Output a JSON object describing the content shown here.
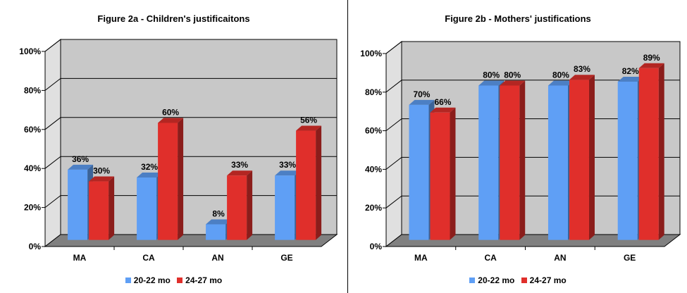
{
  "colors": {
    "series_1": "#5f9ff5",
    "series_2": "#e02f2b",
    "wall": "#c8c8c8",
    "floor": "#808080"
  },
  "chart_data": [
    {
      "type": "bar",
      "title": "Figure 2a - Children's justificaitons",
      "categories": [
        "MA",
        "CA",
        "AN",
        "GE"
      ],
      "series": [
        {
          "name": "20-22 mo",
          "values": [
            36,
            32,
            8,
            33
          ],
          "labels": [
            "36%",
            "32%",
            "8%",
            "33%"
          ]
        },
        {
          "name": "24-27 mo",
          "values": [
            30,
            60,
            33,
            56
          ],
          "labels": [
            "30%",
            "60%",
            "33%",
            "56%"
          ]
        }
      ],
      "ylim": [
        0,
        100
      ],
      "yticks": [
        "0%",
        "20%",
        "40%",
        "60%",
        "80%",
        "100%"
      ],
      "grid": true,
      "legend": "bottom"
    },
    {
      "type": "bar",
      "title": "Figure 2b - Mothers' justifications",
      "categories": [
        "MA",
        "CA",
        "AN",
        "GE"
      ],
      "series": [
        {
          "name": "20-22 mo",
          "values": [
            70,
            80,
            80,
            82
          ],
          "labels": [
            "70%",
            "80%",
            "80%",
            "82%"
          ]
        },
        {
          "name": "24-27 mo",
          "values": [
            66,
            80,
            83,
            89
          ],
          "labels": [
            "66%",
            "80%",
            "83%",
            "89%"
          ]
        }
      ],
      "ylim": [
        0,
        100
      ],
      "yticks": [
        "0%",
        "20%",
        "40%",
        "60%",
        "80%",
        "100%"
      ],
      "grid": true,
      "legend": "bottom"
    }
  ]
}
